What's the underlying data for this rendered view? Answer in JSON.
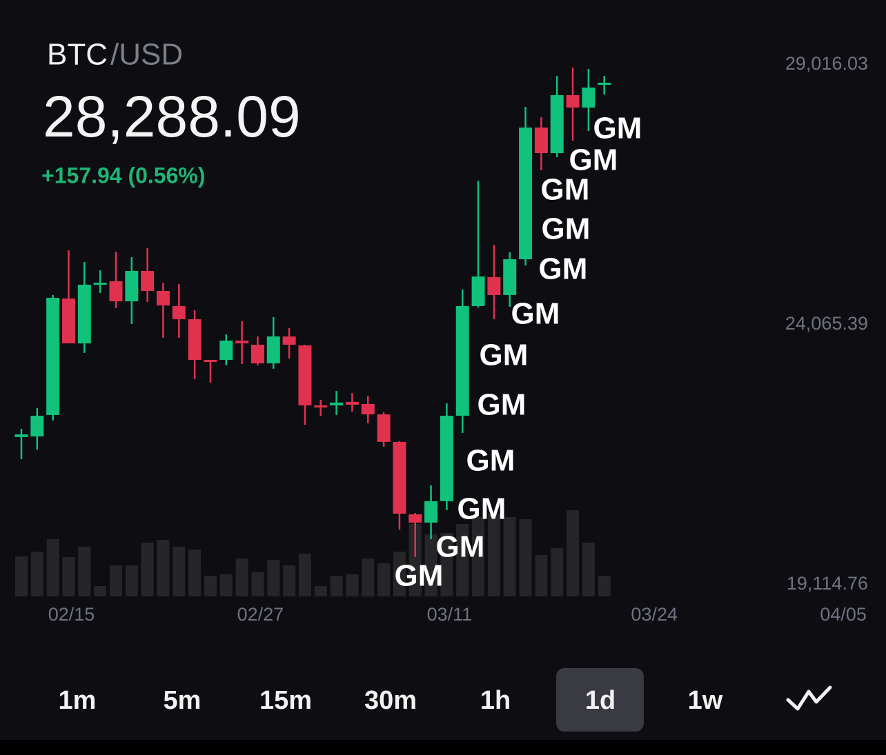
{
  "header": {
    "base": "BTC",
    "quote": "/USD",
    "price": "28,288.09",
    "change": "+157.94 (0.56%)"
  },
  "chart_data": {
    "type": "candlestick",
    "x": [
      "02/12",
      "02/13",
      "02/14",
      "02/15",
      "02/16",
      "02/17",
      "02/18",
      "02/19",
      "02/20",
      "02/21",
      "02/22",
      "02/23",
      "02/24",
      "02/25",
      "02/26",
      "02/27",
      "02/28",
      "03/01",
      "03/02",
      "03/03",
      "03/04",
      "03/05",
      "03/06",
      "03/07",
      "03/08",
      "03/09",
      "03/10",
      "03/11",
      "03/12",
      "03/13",
      "03/14",
      "03/15",
      "03/16",
      "03/17",
      "03/18",
      "03/19",
      "03/20",
      "03/21"
    ],
    "open": [
      21926,
      21939,
      22346,
      24565,
      23711,
      24841,
      24893,
      24512,
      25090,
      24709,
      24421,
      24171,
      23396,
      23396,
      23764,
      23685,
      23331,
      23843,
      23672,
      22530,
      22530,
      22596,
      22556,
      22359,
      21834,
      20455,
      20297,
      20705,
      22333,
      24421,
      24972,
      24631,
      25313,
      27821,
      27335,
      28438,
      28202,
      28635
    ],
    "high": [
      22083,
      22477,
      24631,
      25484,
      25261,
      25103,
      25458,
      25353,
      25523,
      24867,
      24841,
      24342,
      23396,
      23882,
      24132,
      23843,
      24210,
      24000,
      23685,
      22635,
      22805,
      22766,
      22714,
      22399,
      21847,
      20481,
      21007,
      22570,
      24736,
      26810,
      25589,
      25445,
      28215,
      28018,
      28806,
      28963,
      28937,
      28806
    ],
    "low": [
      21505,
      21689,
      22241,
      23711,
      23528,
      24670,
      24381,
      24079,
      24499,
      23817,
      23817,
      23029,
      22963,
      23291,
      23318,
      23291,
      23226,
      23423,
      22162,
      22333,
      22346,
      22412,
      22188,
      21742,
      20166,
      19641,
      19982,
      20534,
      22004,
      24394,
      24171,
      24407,
      25195,
      27007,
      27257,
      27572,
      27756,
      28451
    ],
    "close": [
      21978,
      22333,
      24578,
      23711,
      24828,
      24867,
      24512,
      25090,
      24709,
      24434,
      24171,
      23396,
      23357,
      23764,
      23711,
      23331,
      23843,
      23685,
      22530,
      22504,
      22583,
      22543,
      22359,
      21834,
      20468,
      20297,
      20705,
      22333,
      24421,
      24985,
      24631,
      25313,
      27821,
      27335,
      28438,
      28202,
      28583,
      28675
    ],
    "volume": [
      58,
      65,
      83,
      57,
      72,
      15,
      45,
      45,
      78,
      82,
      72,
      68,
      30,
      32,
      55,
      35,
      53,
      45,
      62,
      15,
      30,
      32,
      55,
      48,
      65,
      105,
      90,
      92,
      105,
      115,
      120,
      115,
      112,
      60,
      70,
      125,
      78,
      30
    ],
    "up_color": "#10c27c",
    "down_color": "#e0324f",
    "volume_color": "#262629",
    "ylim": [
      19114.76,
      29016.03
    ],
    "yticks": [
      {
        "value": 29016.03,
        "label": "29,016.03"
      },
      {
        "value": 24065.39,
        "label": "24,065.39"
      },
      {
        "value": 19114.76,
        "label": "19,114.76"
      }
    ],
    "xticks": [
      "02/15",
      "02/27",
      "03/11",
      "03/24",
      "04/05"
    ],
    "annotations": [
      "GM",
      "GM",
      "GM",
      "GM",
      "GM",
      "GM",
      "GM",
      "GM",
      "GM",
      "GM",
      "GM",
      "GM"
    ]
  },
  "timeframes": {
    "items": [
      "1m",
      "5m",
      "15m",
      "30m",
      "1h",
      "1d",
      "1w"
    ],
    "selected_index": 5
  }
}
